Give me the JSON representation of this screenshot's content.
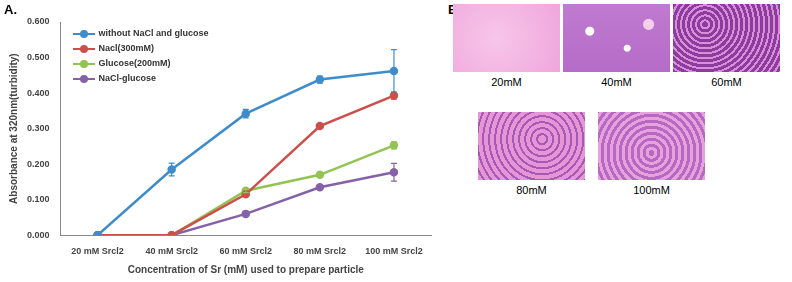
{
  "chart_data": {
    "type": "line",
    "x_label": "Concentration of Sr (mM) used to prepare particle",
    "y_label": "Absorbance at 320nm(turbidity)",
    "categories": [
      "20 mM Srcl2",
      "40 mM Srcl2",
      "60 mM Srcl2",
      "80 mM Srcl2",
      "100 mM Srcl2"
    ],
    "series": [
      {
        "name": "without NaCl and glucose",
        "color": "#3f8ccb",
        "values": [
          0,
          0.185,
          0.342,
          0.438,
          0.462
        ],
        "errors": [
          0,
          0.018,
          0.012,
          0.01,
          0.06
        ]
      },
      {
        "name": "Nacl(300mM)",
        "color": "#cd4f4a",
        "values": [
          0,
          0,
          0.115,
          0.307,
          0.393
        ],
        "errors": [
          0,
          0,
          0.005,
          0.006,
          0.01
        ]
      },
      {
        "name": "Glucose(200mM)",
        "color": "#92c353",
        "values": [
          0,
          0,
          0.125,
          0.17,
          0.253
        ],
        "errors": [
          0,
          0,
          0.005,
          0.004,
          0.01
        ]
      },
      {
        "name": "NaCl-glucose",
        "color": "#8562a8",
        "values": [
          0,
          0,
          0.06,
          0.135,
          0.177
        ],
        "errors": [
          0,
          0,
          0.004,
          0.005,
          0.025
        ]
      }
    ],
    "ylim": [
      0,
      0.6
    ],
    "yticks": [
      {
        "value": 0,
        "label": "0.000"
      },
      {
        "value": 0.1,
        "label": "0.100"
      },
      {
        "value": 0.2,
        "label": "0.200"
      },
      {
        "value": 0.3,
        "label": "0.300"
      },
      {
        "value": 0.4,
        "label": "0.400"
      },
      {
        "value": 0.5,
        "label": "0.500"
      },
      {
        "value": 0.6,
        "label": "0.600"
      }
    ],
    "grid": false,
    "legend": "upper left",
    "marker": "circle",
    "line_style": "solid"
  },
  "panels": {
    "A": "A.",
    "B": {
      "label": "B.",
      "images": [
        "20mM",
        "40mM",
        "60mM",
        "80mM",
        "100mM"
      ]
    }
  }
}
